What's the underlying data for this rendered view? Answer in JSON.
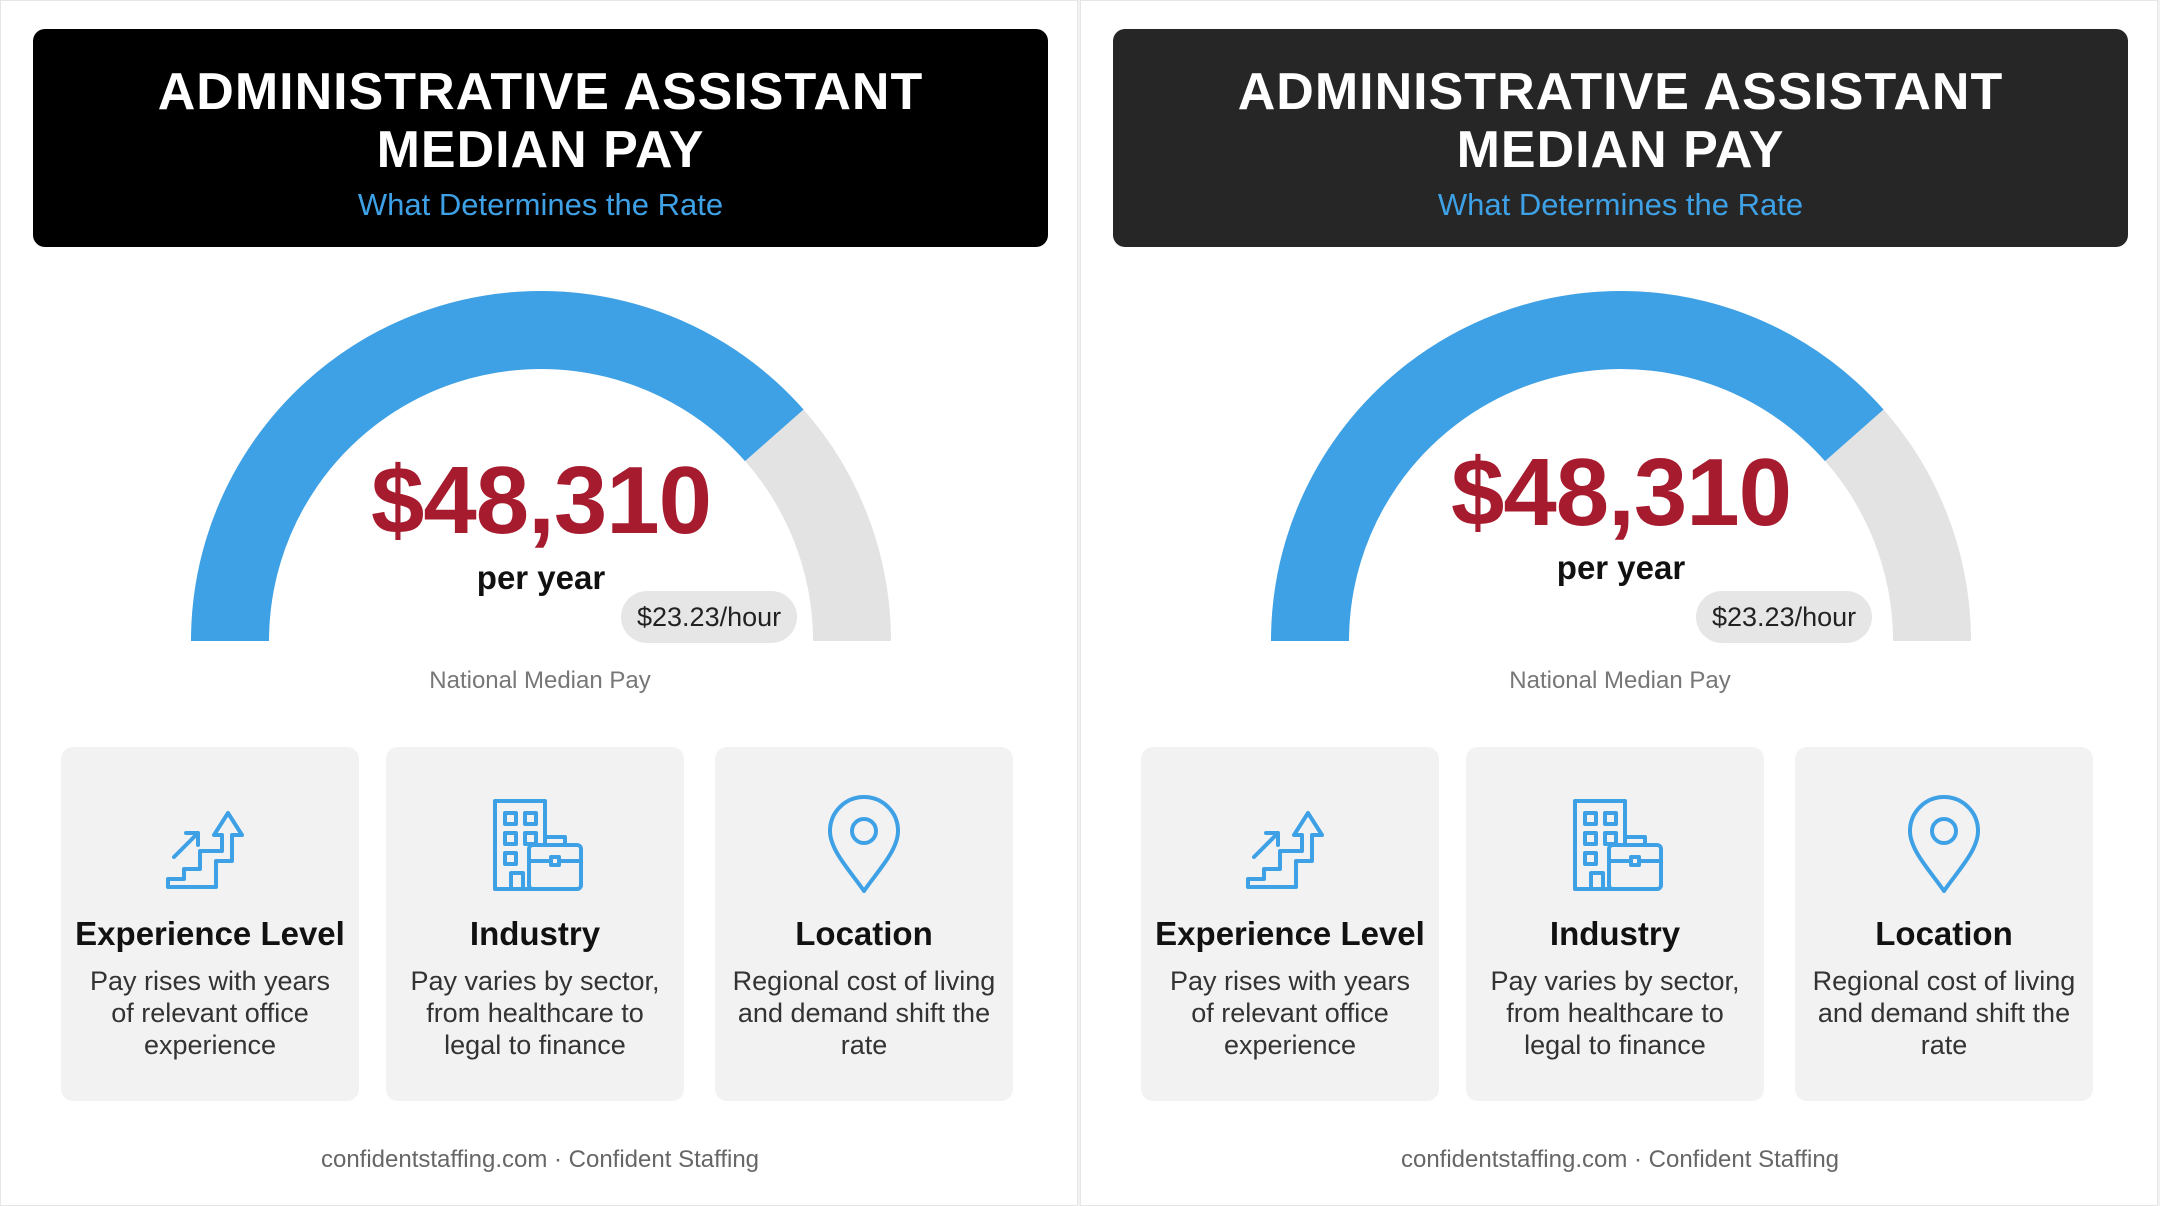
{
  "panels": [
    {
      "title_line1": "ADMINISTRATIVE ASSISTANT",
      "title_line2": "MEDIAN PAY",
      "subtitle": "What Determines the Rate",
      "gauge": {
        "amount": "$48,310",
        "period": "per year",
        "hourly": "$23.23/hour",
        "fill_fraction": 0.77
      },
      "caption": "National Median Pay",
      "cards": [
        {
          "icon": "stairs-arrow-icon",
          "title": "Experience Level",
          "desc": "Pay rises with years of relevant office experience"
        },
        {
          "icon": "building-briefcase-icon",
          "title": "Industry",
          "desc": "Pay varies by sector, from healthcare to legal to finance"
        },
        {
          "icon": "map-pin-icon",
          "title": "Location",
          "desc": "Regional cost of living and demand shift the rate"
        }
      ],
      "footer": "confidentstaffing.com · Confident Staffing"
    },
    {
      "title_line1": "ADMINISTRATIVE ASSISTANT",
      "title_line2": "MEDIAN PAY",
      "subtitle": "What Determines the Rate",
      "gauge": {
        "amount": "$48,310",
        "period": "per year",
        "hourly": "$23.23/hour",
        "fill_fraction": 0.77
      },
      "caption": "National Median Pay",
      "cards": [
        {
          "icon": "stairs-arrow-icon",
          "title": "Experience Level",
          "desc": "Pay rises with years of relevant office experience"
        },
        {
          "icon": "building-briefcase-icon",
          "title": "Industry",
          "desc": "Pay varies by sector, from healthcare to legal to finance"
        },
        {
          "icon": "map-pin-icon",
          "title": "Location",
          "desc": "Regional cost of living and demand shift the rate"
        }
      ],
      "footer": "confidentstaffing.com · Confident Staffing"
    }
  ],
  "colors": {
    "accent": "#3ea1e6",
    "track": "#e3e3e3",
    "amount": "#a61c2e"
  }
}
